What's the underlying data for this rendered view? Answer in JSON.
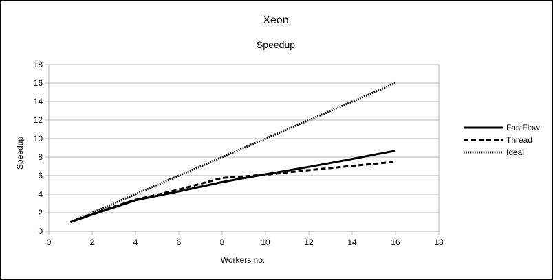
{
  "chart_data": {
    "type": "line",
    "title": "Xeon",
    "subtitle": "Speedup",
    "xlabel": "Workers no.",
    "ylabel": "Speedup",
    "xlim": [
      0,
      18
    ],
    "ylim": [
      0,
      18
    ],
    "xticks": [
      0,
      2,
      4,
      6,
      8,
      10,
      12,
      14,
      16,
      18
    ],
    "yticks": [
      0,
      2,
      4,
      6,
      8,
      10,
      12,
      14,
      16,
      18
    ],
    "grid": "horizontal",
    "legend_position": "right",
    "series": [
      {
        "name": "FastFlow",
        "style": "solid",
        "color": "#000000",
        "x": [
          1,
          2,
          4,
          6,
          8,
          10,
          12,
          14,
          16
        ],
        "y": [
          1.0,
          1.8,
          3.35,
          4.3,
          5.3,
          6.15,
          6.95,
          7.8,
          8.7
        ]
      },
      {
        "name": "Thread",
        "style": "dashed",
        "color": "#000000",
        "x": [
          1,
          2,
          4,
          6,
          8,
          10,
          12,
          14,
          16
        ],
        "y": [
          1.0,
          1.9,
          3.4,
          4.5,
          5.75,
          6.1,
          6.6,
          7.05,
          7.5
        ]
      },
      {
        "name": "Ideal",
        "style": "dotted",
        "color": "#000000",
        "x": [
          1,
          2,
          4,
          6,
          8,
          10,
          12,
          14,
          16
        ],
        "y": [
          1,
          2,
          4,
          6,
          8,
          10,
          12,
          14,
          16
        ]
      }
    ]
  }
}
